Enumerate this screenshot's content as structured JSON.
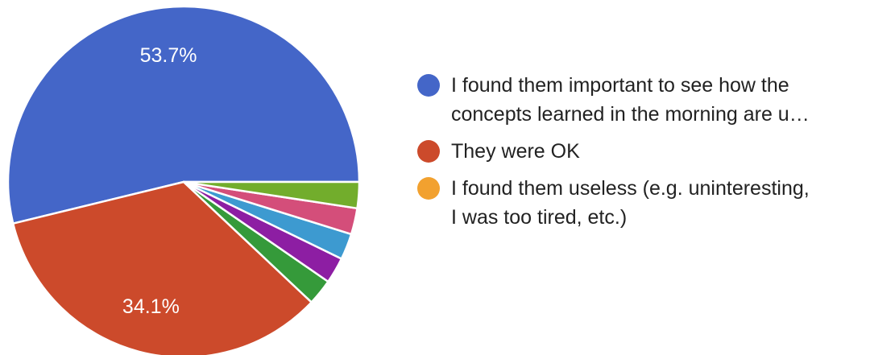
{
  "chart_data": {
    "type": "pie",
    "title": "",
    "slices": [
      {
        "name": "I found them important to see how the\nconcepts learned in the morning are u…",
        "value": 53.7,
        "label": "53.7%",
        "color": "#4466c8",
        "in_legend": true
      },
      {
        "name": "They were OK",
        "value": 34.1,
        "label": "34.1%",
        "color": "#cc4a2b",
        "in_legend": true
      },
      {
        "name": "I found them useless (e.g. uninteresting,\nI was too tired, etc.)",
        "value": 0,
        "label": "",
        "color": "#f2a12f",
        "in_legend": true
      },
      {
        "name": "",
        "value": 2.4,
        "label": "",
        "color": "#359a3a",
        "in_legend": false
      },
      {
        "name": "",
        "value": 2.4,
        "label": "",
        "color": "#8d1ea3",
        "in_legend": false
      },
      {
        "name": "",
        "value": 2.4,
        "label": "",
        "color": "#3d9ad0",
        "in_legend": false
      },
      {
        "name": "",
        "value": 2.4,
        "label": "",
        "color": "#d44e7a",
        "in_legend": false
      },
      {
        "name": "",
        "value": 2.4,
        "label": "",
        "color": "#72ad2c",
        "in_legend": false
      }
    ],
    "legend_position": "right"
  }
}
